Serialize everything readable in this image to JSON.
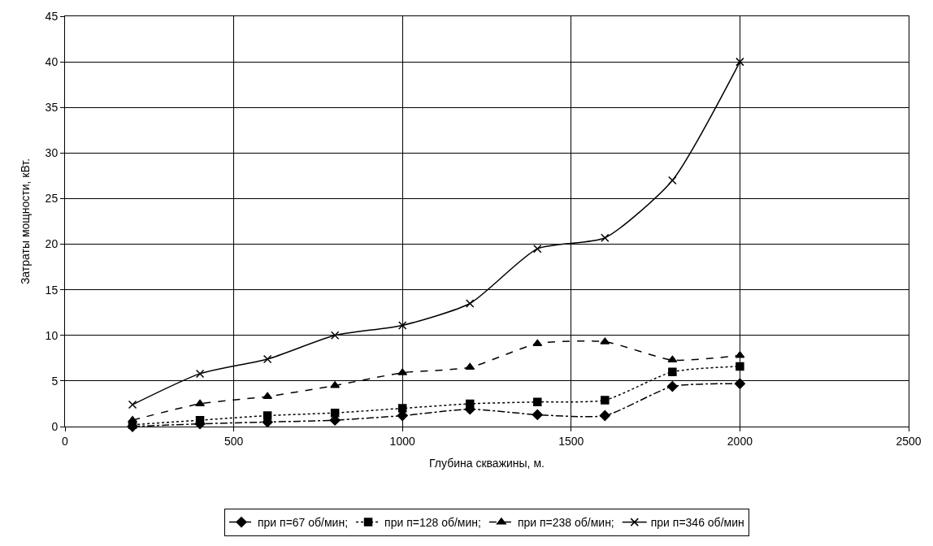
{
  "chart_data": {
    "type": "line",
    "xlabel": "Глубина скважины, м.",
    "ylabel": "Затраты мощности, кВт.",
    "x": [
      200,
      400,
      600,
      800,
      1000,
      1200,
      1400,
      1600,
      1800,
      2000
    ],
    "series": [
      {
        "name": "при п=67 об/мин;",
        "color": "#000000",
        "marker": "diamond",
        "line_style": "dashdot",
        "values": [
          0,
          0.3,
          0.5,
          0.7,
          1.2,
          1.9,
          1.3,
          1.2,
          4.4,
          4.7
        ]
      },
      {
        "name": "при п=128 об/мин;",
        "color": "#000000",
        "marker": "square",
        "line_style": "dotted",
        "values": [
          0.2,
          0.7,
          1.2,
          1.5,
          2.0,
          2.5,
          2.7,
          2.9,
          6.0,
          6.6
        ]
      },
      {
        "name": "при п=238 об/мин;",
        "color": "#000000",
        "marker": "triangle",
        "line_style": "dashed",
        "values": [
          0.7,
          2.5,
          3.3,
          4.5,
          5.9,
          6.5,
          9.1,
          9.3,
          7.3,
          7.8
        ]
      },
      {
        "name": "при п=346 об/мин",
        "color": "#000000",
        "marker": "cross",
        "line_style": "solid",
        "values": [
          2.4,
          5.8,
          7.4,
          10.0,
          11.1,
          13.5,
          19.5,
          20.7,
          27.0,
          40.0
        ]
      }
    ],
    "xlim": [
      0,
      2500
    ],
    "xticks": [
      0,
      500,
      1000,
      1500,
      2000,
      2500
    ],
    "ylim": [
      0,
      45
    ],
    "yticks": [
      0,
      5,
      10,
      15,
      20,
      25,
      30,
      35,
      40,
      45
    ],
    "grid": true,
    "legend": "bottom"
  }
}
